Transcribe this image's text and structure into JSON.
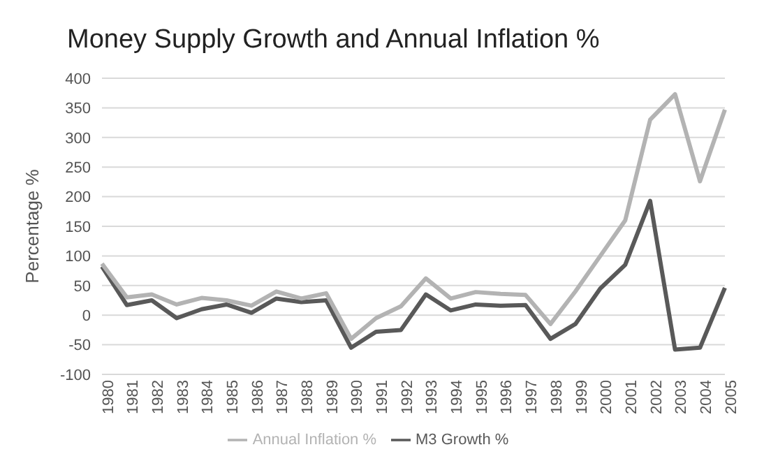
{
  "chart_data": {
    "type": "line",
    "title": "Money Supply Growth and Annual Inflation %",
    "ylabel": "Percentage %",
    "categories": [
      "1980",
      "1981",
      "1982",
      "1983",
      "1984",
      "1985",
      "1986",
      "1987",
      "1988",
      "1989",
      "1990",
      "1991",
      "1992",
      "1993",
      "1994",
      "1995",
      "1996",
      "1997",
      "1998",
      "1999",
      "2000",
      "2001",
      "2002",
      "2003",
      "2004",
      "2005"
    ],
    "series": [
      {
        "name": "M3 Growth %",
        "color": "#595959",
        "values": [
          82,
          17,
          25,
          -5,
          10,
          18,
          4,
          28,
          22,
          25,
          -55,
          -28,
          -25,
          35,
          8,
          18,
          16,
          17,
          -40,
          -15,
          45,
          85,
          193,
          -58,
          -55,
          46
        ]
      },
      {
        "name": "Annual Inflation %",
        "color": "#b3b3b3",
        "values": [
          87,
          30,
          35,
          18,
          29,
          25,
          16,
          40,
          28,
          37,
          -40,
          -5,
          15,
          62,
          28,
          39,
          36,
          34,
          -15,
          40,
          100,
          160,
          330,
          373,
          226,
          347
        ]
      }
    ],
    "ylim": [
      -100,
      400
    ],
    "yticks": [
      -100,
      -50,
      0,
      50,
      100,
      150,
      200,
      250,
      300,
      350,
      400
    ],
    "grid": "y",
    "legend": "bottom",
    "marker": "none",
    "line_style": "solid"
  }
}
